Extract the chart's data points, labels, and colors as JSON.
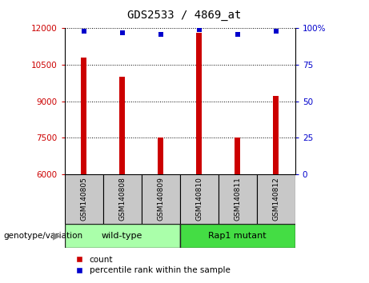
{
  "title": "GDS2533 / 4869_at",
  "samples": [
    "GSM140805",
    "GSM140808",
    "GSM140809",
    "GSM140810",
    "GSM140811",
    "GSM140812"
  ],
  "counts": [
    10800,
    10000,
    7500,
    11800,
    7500,
    9200
  ],
  "percentiles": [
    98,
    97,
    96,
    99,
    96,
    98
  ],
  "ylim_left": [
    6000,
    12000
  ],
  "ylim_right": [
    0,
    100
  ],
  "yticks_left": [
    6000,
    7500,
    9000,
    10500,
    12000
  ],
  "yticks_right": [
    0,
    25,
    50,
    75,
    100
  ],
  "ytick_right_labels": [
    "0",
    "25",
    "50",
    "75",
    "100%"
  ],
  "group_labels": [
    "wild-type",
    "Rap1 mutant"
  ],
  "group_colors": [
    "#AAFFAA",
    "#44DD44"
  ],
  "group_label": "genotype/variation",
  "bar_color": "#CC0000",
  "dot_color": "#0000CC",
  "bar_width": 0.15,
  "sample_bg_color": "#C8C8C8",
  "legend_count_label": "count",
  "legend_percentile_label": "percentile rank within the sample"
}
